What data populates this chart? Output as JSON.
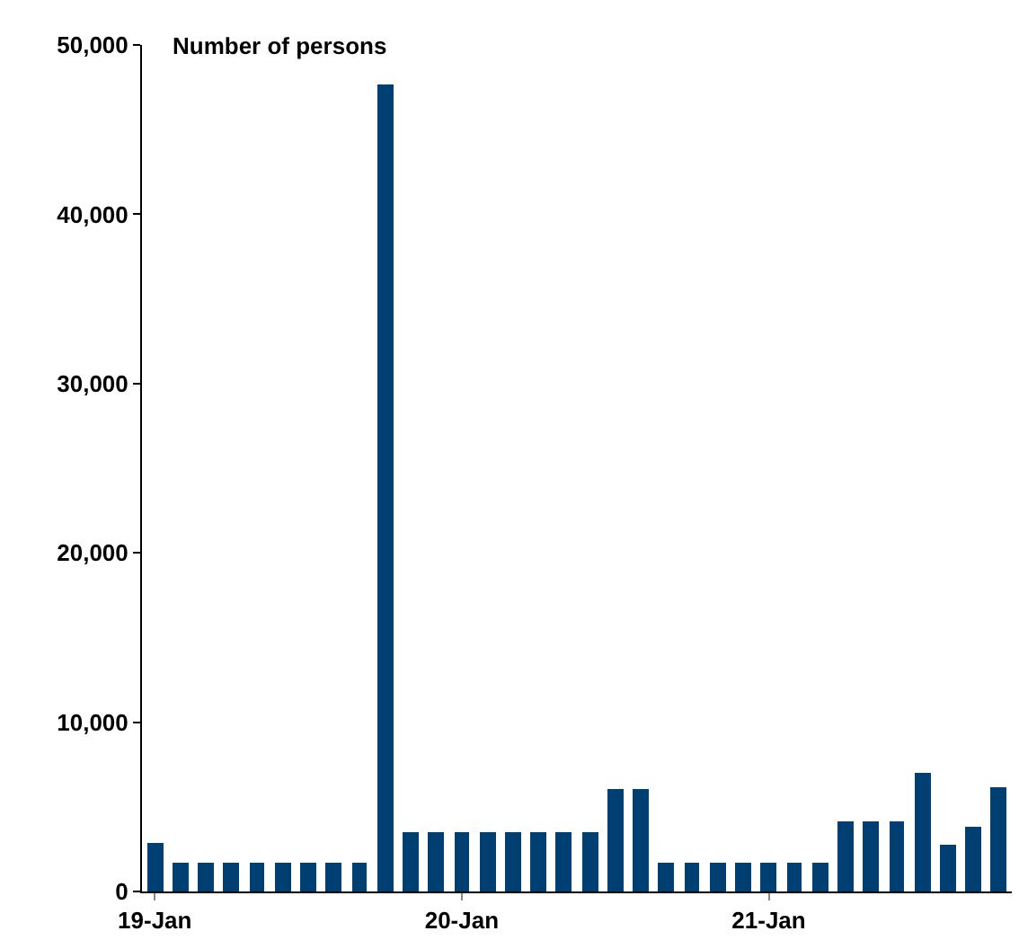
{
  "chart_data": {
    "type": "bar",
    "title": "Number of persons",
    "categories": [
      "19-Jan",
      null,
      null,
      null,
      null,
      null,
      null,
      null,
      null,
      null,
      null,
      null,
      "20-Jan",
      null,
      null,
      null,
      null,
      null,
      null,
      null,
      null,
      null,
      null,
      null,
      "21-Jan",
      null,
      null,
      null,
      null,
      null,
      null,
      null,
      null,
      null
    ],
    "values": [
      2900,
      1700,
      1700,
      1700,
      1700,
      1700,
      1700,
      1700,
      1700,
      47700,
      3500,
      3500,
      3500,
      3500,
      3500,
      3500,
      3500,
      3500,
      6000,
      6000,
      1700,
      1700,
      1700,
      1700,
      1700,
      1700,
      1700,
      4100,
      4100,
      4100,
      7000,
      2800,
      3800,
      6200
    ],
    "color": "#003f72",
    "ylim": [
      0,
      50000
    ],
    "yticks": [
      {
        "value": 0,
        "label": "0"
      },
      {
        "value": 10000,
        "label": "10,000"
      },
      {
        "value": 20000,
        "label": "20,000"
      },
      {
        "value": 30000,
        "label": "30,000"
      },
      {
        "value": 40000,
        "label": "40,000"
      },
      {
        "value": 50000,
        "label": "50,000"
      }
    ],
    "legend": false
  }
}
